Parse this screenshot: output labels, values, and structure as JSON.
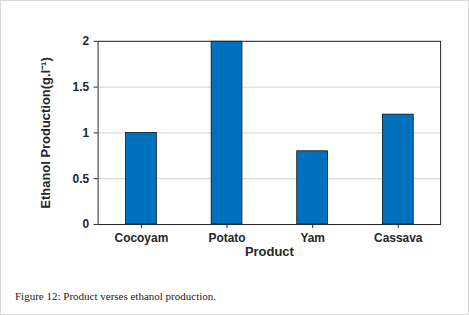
{
  "chart_data": {
    "type": "bar",
    "categories": [
      "Cocoyam",
      "Potato",
      "Yam",
      "Cassava"
    ],
    "values": [
      1,
      2,
      0.8,
      1.2
    ],
    "color": "#0072bd",
    "x_label": "Product",
    "y_label": "Ethanol Production(g.l⁻¹)",
    "ylim": [
      0,
      2
    ],
    "yticks": [
      0,
      0.5,
      1,
      1.5,
      2
    ],
    "grid": true,
    "caption": "Figure 12: Product verses ethanol production."
  }
}
